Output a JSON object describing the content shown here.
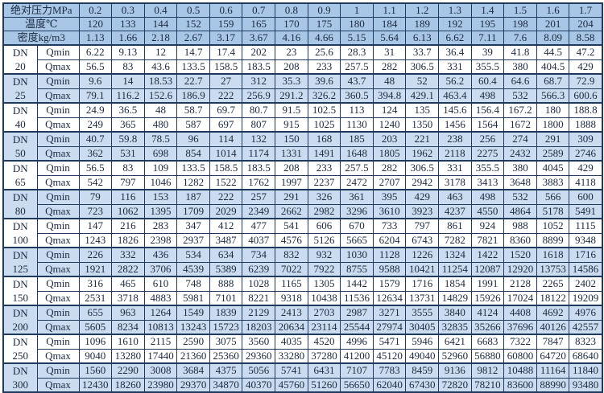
{
  "table": {
    "title_hint": "蒸汽流量表 (steam flow capacity table)",
    "dn_prefix": "DN",
    "qmin_label": "Qmin",
    "qmax_label": "Qmax",
    "colors": {
      "header_fill": "#a8c6e6",
      "band_fill": "#cbdcf0",
      "border": "#1e3a5f",
      "text": "#1b2940"
    },
    "header_rows": [
      {
        "label": "绝对压力MPa",
        "values": [
          "0.2",
          "0.3",
          "0.4",
          "0.5",
          "0.6",
          "0.7",
          "0.8",
          "0.9",
          "1",
          "1.1",
          "1.2",
          "1.3",
          "1.4",
          "1.5",
          "1.6",
          "1.7"
        ]
      },
      {
        "label": "温度℃",
        "values": [
          "120",
          "133",
          "144",
          "152",
          "159",
          "165",
          "170",
          "175",
          "180",
          "184",
          "189",
          "192",
          "195",
          "198",
          "201",
          "204"
        ]
      },
      {
        "label": "密度kg/m3",
        "values": [
          "1.13",
          "1.66",
          "2.18",
          "2.67",
          "3.17",
          "3.67",
          "4.16",
          "4.66",
          "5.15",
          "5.64",
          "6.13",
          "6.62",
          "7.11",
          "7.6",
          "8.09",
          "8.58"
        ]
      }
    ],
    "groups": [
      {
        "dn": "20",
        "qmin": [
          "6.22",
          "9.13",
          "12",
          "14.7",
          "17.4",
          "202",
          "23",
          "25.6",
          "28.3",
          "31",
          "33.7",
          "36.4",
          "39",
          "41.8",
          "44.5",
          "47.2"
        ],
        "qmax": [
          "56.5",
          "83",
          "43.6",
          "133.5",
          "158.5",
          "183.5",
          "208",
          "233",
          "257.5",
          "282",
          "306.5",
          "331",
          "355.5",
          "380",
          "404.5",
          "429"
        ]
      },
      {
        "dn": "25",
        "qmin": [
          "9.6",
          "14",
          "18.53",
          "22.7",
          "27",
          "312",
          "35.3",
          "39.6",
          "43.7",
          "48",
          "52",
          "56.2",
          "60.4",
          "64.6",
          "68.7",
          "72.9"
        ],
        "qmax": [
          "79.1",
          "116.2",
          "152.6",
          "186.9",
          "222",
          "256.9",
          "291.2",
          "326.2",
          "360.5",
          "394.8",
          "429.1",
          "463.4",
          "498",
          "532",
          "566.3",
          "600.6"
        ]
      },
      {
        "dn": "40",
        "qmin": [
          "24.9",
          "36.5",
          "48",
          "58.7",
          "69.7",
          "80.7",
          "91.5",
          "102.5",
          "113",
          "124",
          "135",
          "145.6",
          "156.4",
          "167.2",
          "180",
          "188.8"
        ],
        "qmax": [
          "249",
          "365",
          "480",
          "587",
          "697",
          "807",
          "915",
          "1025",
          "1130",
          "1240",
          "1350",
          "1456",
          "1564",
          "1672",
          "1800",
          "1888"
        ]
      },
      {
        "dn": "50",
        "qmin": [
          "40.7",
          "59.8",
          "78.5",
          "96",
          "114",
          "132",
          "150",
          "168",
          "185",
          "203",
          "221",
          "238",
          "256",
          "274",
          "291",
          "309"
        ],
        "qmax": [
          "362",
          "531",
          "698",
          "854",
          "1014",
          "1174",
          "1331",
          "1491",
          "1648",
          "1805",
          "1962",
          "2118",
          "2275",
          "2432",
          "2589",
          "2746"
        ]
      },
      {
        "dn": "65",
        "qmin": [
          "56.5",
          "83",
          "109",
          "133.5",
          "158.5",
          "183.5",
          "208",
          "233",
          "257.5",
          "282",
          "306.5",
          "331",
          "355.5",
          "380",
          "4045",
          "429"
        ],
        "qmax": [
          "542",
          "797",
          "1046",
          "1282",
          "1522",
          "1762",
          "1997",
          "2237",
          "2472",
          "2707",
          "2942",
          "3178",
          "3413",
          "3648",
          "3883",
          "4118"
        ]
      },
      {
        "dn": "80",
        "qmin": [
          "79",
          "116",
          "153",
          "187",
          "222",
          "257",
          "291",
          "326",
          "361",
          "395",
          "429",
          "463",
          "498",
          "532",
          "566",
          "600"
        ],
        "qmax": [
          "723",
          "1062",
          "1395",
          "1709",
          "2029",
          "2349",
          "2662",
          "2982",
          "3296",
          "3610",
          "3923",
          "4237",
          "4550",
          "4864",
          "5178",
          "5491"
        ]
      },
      {
        "dn": "100",
        "qmin": [
          "147",
          "216",
          "283",
          "347",
          "412",
          "477",
          "541",
          "606",
          "670",
          "733",
          "797",
          "861",
          "924",
          "988",
          "1052",
          "1115"
        ],
        "qmax": [
          "1243",
          "1826",
          "2398",
          "2937",
          "3487",
          "4037",
          "4576",
          "5126",
          "5665",
          "6204",
          "6743",
          "7282",
          "7821",
          "8360",
          "8899",
          "9348"
        ]
      },
      {
        "dn": "125",
        "qmin": [
          "226",
          "332",
          "436",
          "534",
          "634",
          "734",
          "832",
          "932",
          "1030",
          "1128",
          "1226",
          "1324",
          "1422",
          "1520",
          "1618",
          "1716"
        ],
        "qmax": [
          "1921",
          "2822",
          "3706",
          "4539",
          "5389",
          "6239",
          "7022",
          "7922",
          "8755",
          "9588",
          "10421",
          "11254",
          "12087",
          "12920",
          "13753",
          "14586"
        ]
      },
      {
        "dn": "150",
        "qmin": [
          "316",
          "465",
          "610",
          "748",
          "888",
          "1028",
          "1165",
          "1305",
          "1442",
          "1579",
          "1716",
          "1854",
          "1991",
          "2128",
          "2265",
          "2402"
        ],
        "qmax": [
          "2531",
          "3718",
          "4883",
          "5981",
          "7101",
          "8221",
          "9318",
          "10438",
          "11536",
          "12634",
          "13731",
          "14829",
          "15926",
          "17024",
          "18122",
          "19209"
        ]
      },
      {
        "dn": "200",
        "qmin": [
          "655",
          "963",
          "1264",
          "1549",
          "1839",
          "2129",
          "2413",
          "2703",
          "2987",
          "3271",
          "3555",
          "3840",
          "4124",
          "4408",
          "4692",
          "4976"
        ],
        "qmax": [
          "5605",
          "8234",
          "10813",
          "13243",
          "15723",
          "18203",
          "20634",
          "23114",
          "25544",
          "27974",
          "30405",
          "32835",
          "35266",
          "37696",
          "40126",
          "42557"
        ]
      },
      {
        "dn": "250",
        "qmin": [
          "1096",
          "1610",
          "2115",
          "2590",
          "3075",
          "3560",
          "4035",
          "4520",
          "4996",
          "5471",
          "5946",
          "6421",
          "6683",
          "7322",
          "7847",
          "8323"
        ],
        "qmax": [
          "9040",
          "13280",
          "17440",
          "21360",
          "25360",
          "29360",
          "33280",
          "37280",
          "41200",
          "45120",
          "49040",
          "52960",
          "56880",
          "60800",
          "64720",
          "68640"
        ]
      },
      {
        "dn": "300",
        "qmin": [
          "1560",
          "2290",
          "3008",
          "3684",
          "4375",
          "5056",
          "5741",
          "6431",
          "7107",
          "7783",
          "8459",
          "9136",
          "9812",
          "10488",
          "11164",
          "11840"
        ],
        "qmax": [
          "12430",
          "18260",
          "23980",
          "29370",
          "34870",
          "40370",
          "45760",
          "51260",
          "56650",
          "62040",
          "67430",
          "72820",
          "78210",
          "83600",
          "88990",
          "93480"
        ]
      }
    ]
  }
}
